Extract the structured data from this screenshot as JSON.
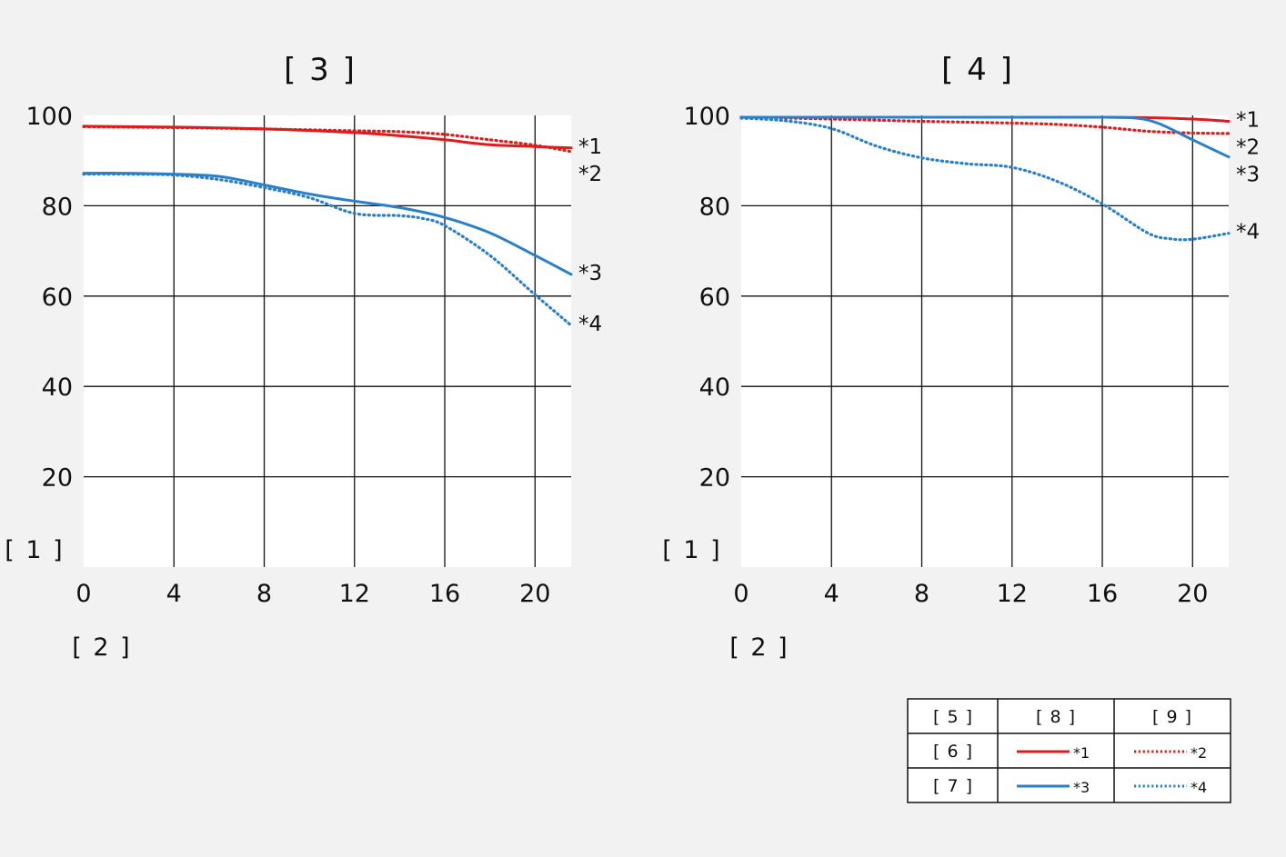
{
  "chart_data": [
    {
      "type": "line",
      "title": "[ 3 ]",
      "xlabel": "[ 2 ]",
      "ylabel": "[ 1 ]",
      "xlim": [
        0,
        21.6
      ],
      "ylim": [
        0,
        100
      ],
      "xticks": [
        0,
        4,
        8,
        12,
        16,
        20
      ],
      "yticks": [
        20,
        40,
        60,
        80,
        100
      ],
      "grid": true,
      "series": [
        {
          "name": "*1",
          "color": "#e01b1b",
          "style": "solid",
          "x": [
            0,
            4,
            8,
            12,
            14,
            16,
            18,
            20,
            21.6
          ],
          "y": [
            97.6,
            97.4,
            97.0,
            96.2,
            95.5,
            94.6,
            93.5,
            93.1,
            92.8
          ]
        },
        {
          "name": "*2",
          "color": "#e01b1b",
          "style": "dotted",
          "x": [
            0,
            4,
            8,
            12,
            14,
            16,
            18,
            20,
            21.6
          ],
          "y": [
            97.5,
            97.3,
            97.0,
            96.6,
            96.4,
            95.8,
            94.6,
            93.4,
            92.0
          ]
        },
        {
          "name": "*3",
          "color": "#2a7fc9",
          "style": "solid",
          "x": [
            0,
            2,
            4,
            6,
            8,
            10,
            12,
            14,
            16,
            18,
            20,
            21.6
          ],
          "y": [
            87.2,
            87.2,
            87.0,
            86.5,
            84.6,
            82.6,
            81.0,
            79.6,
            77.4,
            74.0,
            69.0,
            64.8
          ]
        },
        {
          "name": "*4",
          "color": "#2a7fc9",
          "style": "dotted",
          "x": [
            0,
            2,
            4,
            6,
            8,
            10,
            12,
            14,
            15,
            16,
            18,
            20,
            21.6
          ],
          "y": [
            87.0,
            87.0,
            86.8,
            85.8,
            84.0,
            81.8,
            78.3,
            77.8,
            77.2,
            75.6,
            69.0,
            60.3,
            53.5
          ]
        }
      ]
    },
    {
      "type": "line",
      "title": "[ 4 ]",
      "xlabel": "[ 2 ]",
      "ylabel": "[ 1 ]",
      "xlim": [
        0,
        21.6
      ],
      "ylim": [
        0,
        100
      ],
      "xticks": [
        0,
        4,
        8,
        12,
        16,
        20
      ],
      "yticks": [
        20,
        40,
        60,
        80,
        100
      ],
      "grid": true,
      "series": [
        {
          "name": "*1",
          "color": "#e01b1b",
          "style": "solid",
          "x": [
            0,
            4,
            8,
            12,
            16,
            18,
            20,
            21.6
          ],
          "y": [
            99.6,
            99.6,
            99.6,
            99.6,
            99.6,
            99.5,
            99.2,
            98.7
          ]
        },
        {
          "name": "*2",
          "color": "#e01b1b",
          "style": "dotted",
          "x": [
            0,
            4,
            8,
            12,
            14,
            16,
            18,
            20,
            21.6
          ],
          "y": [
            99.6,
            99.2,
            98.7,
            98.3,
            98.0,
            97.4,
            96.5,
            96.1,
            96.0
          ]
        },
        {
          "name": "*3",
          "color": "#2a7fc9",
          "style": "solid",
          "x": [
            0,
            4,
            8,
            12,
            16,
            17.5,
            18.5,
            20,
            21.6
          ],
          "y": [
            99.6,
            99.6,
            99.6,
            99.6,
            99.6,
            99.4,
            98.2,
            94.6,
            90.8
          ]
        },
        {
          "name": "*4",
          "color": "#2a7fc9",
          "style": "dotted",
          "x": [
            0,
            2,
            4,
            6,
            8,
            10,
            12,
            14,
            16,
            18,
            19,
            20,
            21.6
          ],
          "y": [
            99.4,
            98.8,
            97.1,
            93.2,
            90.6,
            89.3,
            88.5,
            85.4,
            80.4,
            74.0,
            72.7,
            72.6,
            73.9
          ]
        }
      ]
    }
  ],
  "legend": {
    "header": [
      "[ 5 ]",
      "[ 8 ]",
      "[ 9 ]"
    ],
    "rows": [
      {
        "label": "[ 6 ]",
        "entries": [
          {
            "tag": "*1",
            "color": "#e01b1b",
            "style": "solid"
          },
          {
            "tag": "*2",
            "color": "#e01b1b",
            "style": "dotted"
          }
        ]
      },
      {
        "label": "[ 7 ]",
        "entries": [
          {
            "tag": "*3",
            "color": "#2a7fc9",
            "style": "solid"
          },
          {
            "tag": "*4",
            "color": "#2a7fc9",
            "style": "dotted"
          }
        ]
      }
    ]
  }
}
